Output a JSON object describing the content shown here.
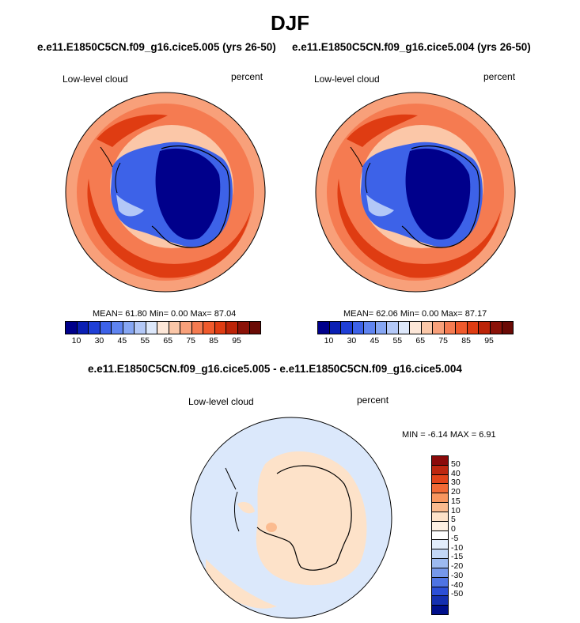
{
  "title": "DJF",
  "subtitle_left": "e.e11.E1850C5CN.f09_g16.cice5.005 (yrs 26-50)",
  "subtitle_right": "e.e11.E1850C5CN.f09_g16.cice5.004 (yrs 26-50)",
  "diff_title": "e.e11.E1850C5CN.f09_g16.cice5.005 - e.e11.E1850C5CN.f09_g16.cice5.004",
  "panels": [
    {
      "variable": "Low-level cloud",
      "units": "percent",
      "stats": "MEAN=  61.80  Min=   0.00  Max=  87.04"
    },
    {
      "variable": "Low-level cloud",
      "units": "percent",
      "stats": "MEAN=  62.06  Min=   0.00  Max=  87.17"
    }
  ],
  "diff_panel": {
    "variable": "Low-level cloud",
    "units": "percent",
    "stats": "MIN =  -6.14 MAX =   6.91"
  },
  "colorbar": {
    "colors": [
      "#00008b",
      "#0a1fb4",
      "#1f3fd6",
      "#3d62e8",
      "#5f84f0",
      "#86a6f3",
      "#b3c8f7",
      "#dde8fb",
      "#fde7d8",
      "#fbc7a8",
      "#f8a07a",
      "#f57b51",
      "#f05a2c",
      "#df3c12",
      "#bc2408",
      "#8b1208",
      "#6a0a05"
    ],
    "labels": [
      "10",
      "30",
      "45",
      "55",
      "65",
      "75",
      "85",
      "95"
    ]
  },
  "diff_colorbar": {
    "colors": [
      "#8b0a0a",
      "#bd2710",
      "#e2441a",
      "#f26a36",
      "#f8965f",
      "#fbbb8f",
      "#fde2c9",
      "#fdf0e3",
      "#ffffff",
      "#e2edfb",
      "#c3d7f5",
      "#9dbaf0",
      "#7698ea",
      "#4f74e3",
      "#2c4fd6",
      "#1530b0",
      "#000f8b"
    ],
    "labels": [
      "50",
      "40",
      "30",
      "20",
      "15",
      "10",
      "5",
      "0",
      "-5",
      "-10",
      "-15",
      "-20",
      "-30",
      "-40",
      "-50"
    ]
  }
}
